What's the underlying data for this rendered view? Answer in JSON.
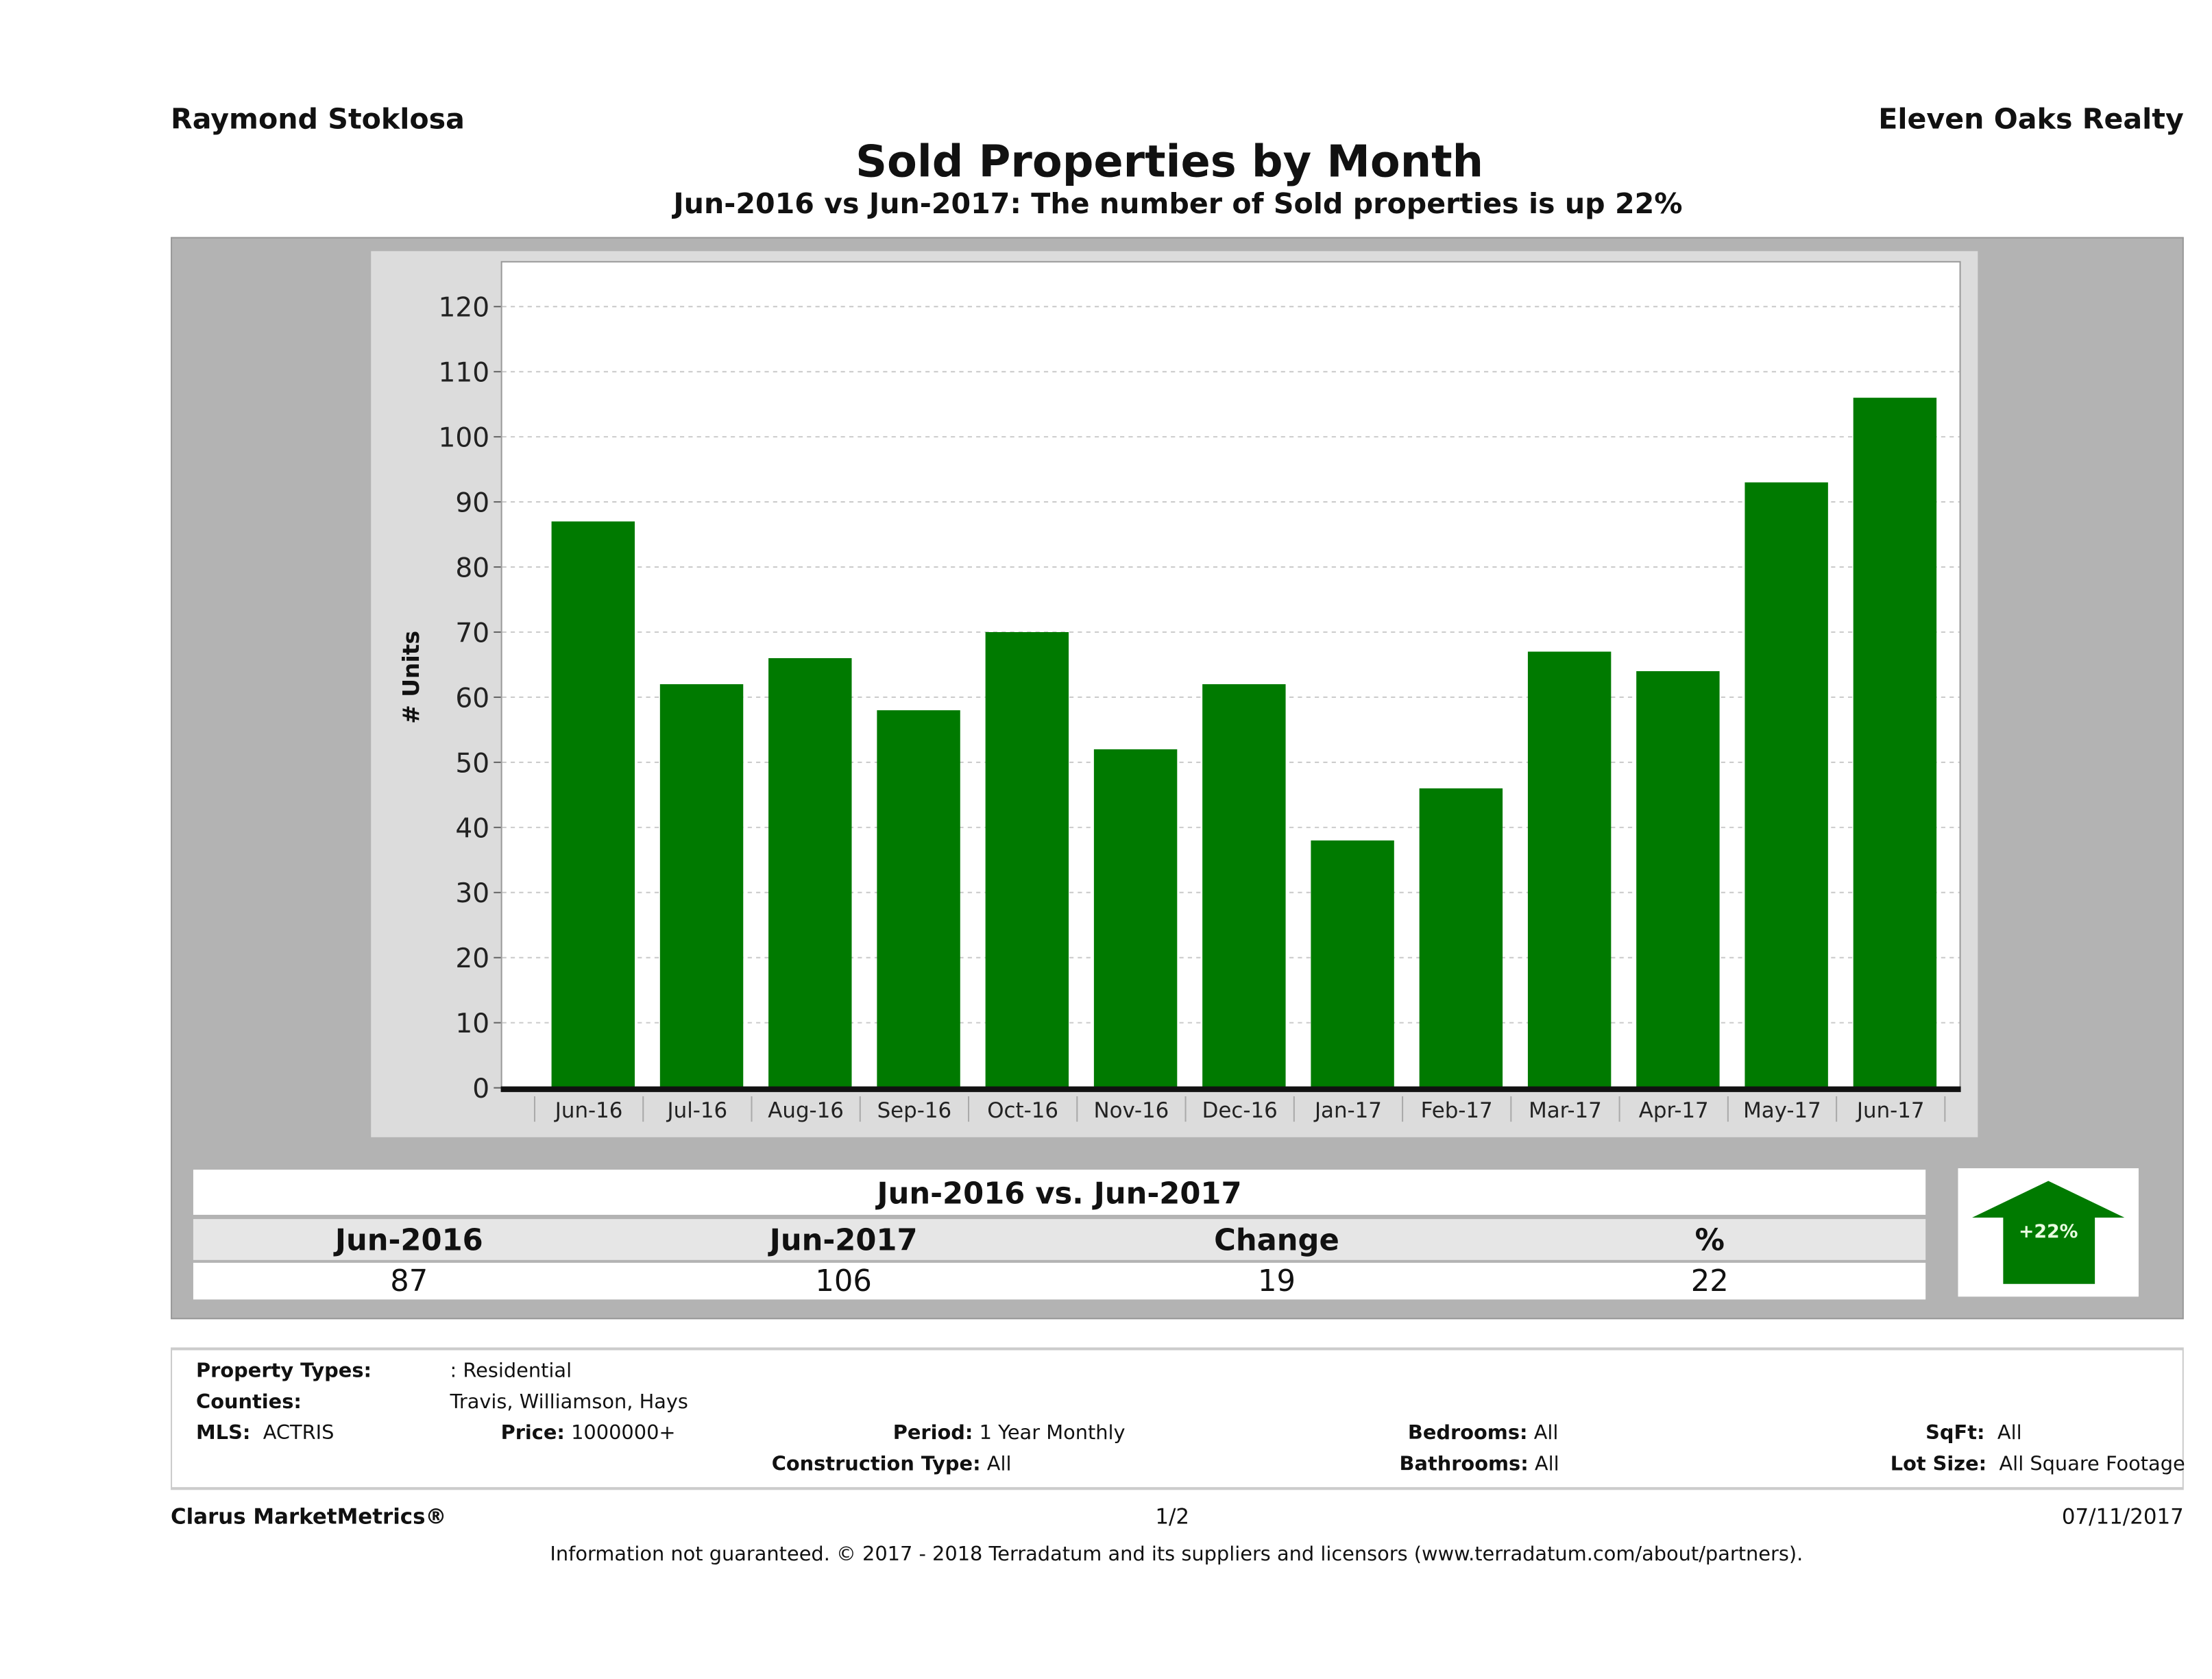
{
  "header": {
    "agent": "Raymond Stoklosa",
    "brokerage": "Eleven Oaks Realty"
  },
  "chart_data": {
    "type": "bar",
    "title": "Sold Properties by Month",
    "subtitle": "Jun-2016 vs Jun-2017: The number of Sold  properties is up 22%",
    "categories": [
      "Jun-16",
      "Jul-16",
      "Aug-16",
      "Sep-16",
      "Oct-16",
      "Nov-16",
      "Dec-16",
      "Jan-17",
      "Feb-17",
      "Mar-17",
      "Apr-17",
      "May-17",
      "Jun-17"
    ],
    "values": [
      87,
      62,
      66,
      58,
      70,
      52,
      62,
      38,
      46,
      67,
      64,
      93,
      106
    ],
    "xlabel": "",
    "ylabel": "# Units",
    "ylim": [
      0,
      127
    ],
    "yticks": [
      0,
      10,
      20,
      30,
      40,
      50,
      60,
      70,
      80,
      90,
      100,
      110,
      120
    ],
    "grid": true,
    "bar_color": "#007a00"
  },
  "summary": {
    "heading": "Jun-2016 vs. Jun-2017",
    "columns": [
      "Jun-2016",
      "Jun-2017",
      "Change",
      "%"
    ],
    "values": [
      "87",
      "106",
      "19",
      "22"
    ],
    "badge": "+22%",
    "badge_icon": "up-arrow-icon",
    "badge_color": "#007a00"
  },
  "filters": {
    "property_types_label": "Property Types:",
    "property_types": ": Residential",
    "counties_label": "Counties:",
    "counties": "Travis, Williamson, Hays",
    "mls_label": "MLS:",
    "mls": "ACTRIS",
    "price_label": "Price:",
    "price": "1000000+",
    "period_label": "Period:",
    "period": "1 Year Monthly",
    "construction_label": "Construction Type:",
    "construction": "All",
    "bedrooms_label": "Bedrooms:",
    "bedrooms": "All",
    "bathrooms_label": "Bathrooms:",
    "bathrooms": "All",
    "sqft_label": "SqFt:",
    "sqft": "All",
    "lot_label": "Lot Size:",
    "lot": "All Square Footage"
  },
  "footer": {
    "brand": "Clarus MarketMetrics®",
    "page": "1/2",
    "date": "07/11/2017",
    "disclaimer": "Information not guaranteed. © 2017 - 2018 Terradatum and its suppliers and licensors (www.terradatum.com/about/partners)."
  }
}
